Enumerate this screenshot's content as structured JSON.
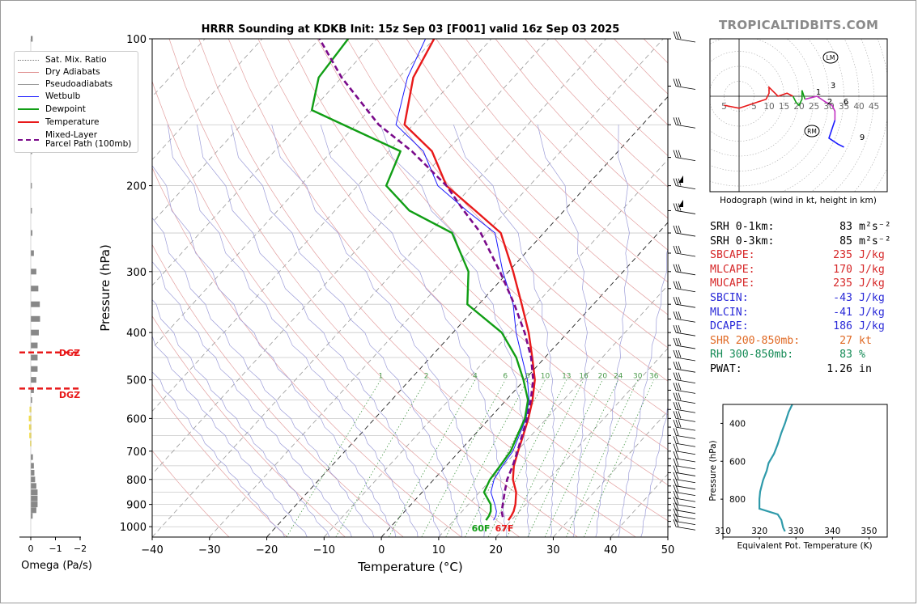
{
  "title": "HRRR Sounding at KDKB Init: 15z Sep 03 [F001] valid 16z Sep 03 2025",
  "watermark": "TROPICALTIDBITS.COM",
  "colors": {
    "temperature": "#e8191a",
    "dewpoint": "#119e15",
    "parcel": "#7a0a8a",
    "wetbulb": "#1a1aff",
    "dgz": "#e8191a",
    "theta_e": "#2e9aaa",
    "red_text": "#d62728",
    "blue_text": "#2a2ad8",
    "orange_text": "#e06a25",
    "green_text": "#138a55"
  },
  "legend": [
    {
      "label": "Sat. Mix. Ratio",
      "style": "dotted",
      "color": "#777777"
    },
    {
      "label": "Dry Adiabats",
      "style": "solid-thin",
      "color": "#e09090"
    },
    {
      "label": "Pseudoadiabats",
      "style": "solid-thin",
      "color": "#999999"
    },
    {
      "label": "Wetbulb",
      "style": "solid-thin",
      "color": "#1a1aff"
    },
    {
      "label": "Dewpoint",
      "style": "solid",
      "color": "#119e15"
    },
    {
      "label": "Temperature",
      "style": "solid",
      "color": "#e8191a"
    },
    {
      "label": "Mixed-Layer\nParcel Path (100mb)",
      "style": "dashed",
      "color": "#7a0a8a"
    }
  ],
  "chart_data": [
    {
      "type": "line",
      "title": "HRRR Sounding at KDKB Init: 15z Sep 03 [F001] valid 16z Sep 03 2025",
      "xlabel": "Temperature (°C)",
      "ylabel": "Pressure (hPa)",
      "xlim": [
        -40,
        50
      ],
      "ylim": [
        1050,
        100
      ],
      "y_scale": "log",
      "grid": true,
      "x_ticks": [
        "−40",
        "−30",
        "−20",
        "−10",
        "0",
        "10",
        "20",
        "30",
        "40",
        "50"
      ],
      "y_ticks": [
        "100",
        "200",
        "300",
        "400",
        "500",
        "600",
        "700",
        "800",
        "900",
        "1000"
      ],
      "mixing_ratio_labels": [
        "1",
        "2",
        "4",
        "6",
        "8",
        "10",
        "13",
        "16",
        "20",
        "24",
        "30",
        "36"
      ],
      "surface_labels": {
        "dewpoint": "60F",
        "temperature": "67F"
      },
      "series": [
        {
          "name": "Temperature",
          "points": [
            [
              19.5,
              970
            ],
            [
              19.3,
              950
            ],
            [
              19.0,
              930
            ],
            [
              18.2,
              900
            ],
            [
              16.4,
              850
            ],
            [
              13.8,
              800
            ],
            [
              11.8,
              750
            ],
            [
              10.2,
              700
            ],
            [
              8.6,
              650
            ],
            [
              6.8,
              600
            ],
            [
              4.6,
              550
            ],
            [
              1.8,
              500
            ],
            [
              -2.2,
              450
            ],
            [
              -6.8,
              400
            ],
            [
              -12.5,
              350
            ],
            [
              -19.2,
              300
            ],
            [
              -27.5,
              250
            ],
            [
              -35.5,
              225
            ],
            [
              -44.5,
              200
            ],
            [
              -52.5,
              170
            ],
            [
              -61.5,
              150
            ],
            [
              -67.5,
              120
            ],
            [
              -70.0,
              100
            ]
          ]
        },
        {
          "name": "Dewpoint",
          "points": [
            [
              15.6,
              970
            ],
            [
              15.4,
              950
            ],
            [
              15.0,
              930
            ],
            [
              13.9,
              900
            ],
            [
              10.8,
              850
            ],
            [
              9.8,
              800
            ],
            [
              9.4,
              750
            ],
            [
              8.9,
              700
            ],
            [
              7.6,
              650
            ],
            [
              6.2,
              600
            ],
            [
              3.8,
              550
            ],
            [
              -0.2,
              500
            ],
            [
              -5.0,
              450
            ],
            [
              -11.5,
              400
            ],
            [
              -22.0,
              350
            ],
            [
              -27.0,
              300
            ],
            [
              -36.0,
              250
            ],
            [
              -47.0,
              225
            ],
            [
              -55.0,
              200
            ],
            [
              -58.0,
              170
            ],
            [
              -80.0,
              140
            ],
            [
              -84.0,
              120
            ],
            [
              -85.0,
              100
            ]
          ]
        },
        {
          "name": "Wetbulb",
          "points": [
            [
              16.9,
              970
            ],
            [
              16.6,
              950
            ],
            [
              16.0,
              930
            ],
            [
              14.6,
              900
            ],
            [
              12.0,
              850
            ],
            [
              10.5,
              800
            ],
            [
              9.8,
              750
            ],
            [
              9.3,
              700
            ],
            [
              7.9,
              650
            ],
            [
              6.4,
              600
            ],
            [
              4.0,
              550
            ],
            [
              0.5,
              500
            ],
            [
              -4.0,
              450
            ],
            [
              -9.0,
              400
            ],
            [
              -14.0,
              350
            ],
            [
              -21.0,
              300
            ],
            [
              -28.5,
              250
            ],
            [
              -37.0,
              225
            ],
            [
              -46.0,
              200
            ],
            [
              -54.0,
              170
            ],
            [
              -63.0,
              150
            ],
            [
              -68.5,
              120
            ],
            [
              -71.5,
              100
            ]
          ]
        },
        {
          "name": "Mixed-Layer\nParcel Path (100mb)",
          "points": [
            [
              18.0,
              955
            ],
            [
              16.9,
              930
            ],
            [
              16.0,
              900
            ],
            [
              14.4,
              850
            ],
            [
              12.8,
              800
            ],
            [
              11.6,
              750
            ],
            [
              10.1,
              700
            ],
            [
              8.4,
              650
            ],
            [
              6.6,
              600
            ],
            [
              4.3,
              550
            ],
            [
              1.5,
              500
            ],
            [
              -2.4,
              450
            ],
            [
              -7.5,
              400
            ],
            [
              -13.8,
              350
            ],
            [
              -21.5,
              300
            ],
            [
              -31.0,
              250
            ],
            [
              -37.5,
              225
            ],
            [
              -44.5,
              200
            ],
            [
              -56.0,
              170
            ],
            [
              -66.0,
              150
            ],
            [
              -80.0,
              120
            ],
            [
              -90.0,
              100
            ]
          ]
        }
      ]
    },
    {
      "type": "bar",
      "xlabel": "Omega (Pa/s)",
      "x_ticks": [
        "0",
        "−1",
        "−2"
      ],
      "dgz_label": "DGZ",
      "dgz_top": 460,
      "dgz_bottom": 525,
      "note": "vertical velocity profile; negative values upward"
    },
    {
      "type": "line",
      "title": "Hodograph (wind in kt, height in km)",
      "ring_labels": [
        "5",
        "5",
        "10",
        "15",
        "20",
        "25",
        "30",
        "35",
        "40",
        "45"
      ],
      "height_labels": [
        "1",
        "2",
        "3",
        "6",
        "9"
      ],
      "markers": [
        "LM",
        "RM"
      ],
      "points": [
        [
          -5,
          -3
        ],
        [
          0,
          -4
        ],
        [
          3,
          -3
        ],
        [
          6,
          -2
        ],
        [
          9,
          -1
        ],
        [
          10,
          1
        ],
        [
          10,
          3
        ],
        [
          13,
          0
        ],
        [
          16,
          1
        ],
        [
          18,
          0
        ],
        [
          19,
          -2
        ],
        [
          20,
          -3
        ],
        [
          21,
          -1
        ],
        [
          21,
          2
        ],
        [
          22,
          -1
        ],
        [
          26,
          0
        ],
        [
          29,
          -2
        ],
        [
          31,
          -3
        ],
        [
          32,
          -5
        ],
        [
          32,
          -8
        ],
        [
          30,
          -14
        ],
        [
          33,
          -16
        ],
        [
          35,
          -17
        ]
      ]
    },
    {
      "type": "line",
      "xlabel": "Equivalent Pot. Temperature (K)",
      "ylabel": "Pressure (hPa)",
      "xlim": [
        310,
        355
      ],
      "ylim": [
        1000,
        300
      ],
      "x_ticks": [
        "310",
        "320",
        "330",
        "340",
        "350"
      ],
      "y_ticks": [
        "400",
        "600",
        "800"
      ],
      "points": [
        [
          327,
          970
        ],
        [
          326.5,
          950
        ],
        [
          326,
          910
        ],
        [
          325,
          880
        ],
        [
          320,
          850
        ],
        [
          320,
          800
        ],
        [
          320.2,
          760
        ],
        [
          321,
          700
        ],
        [
          322,
          650
        ],
        [
          322.5,
          610
        ],
        [
          324,
          560
        ],
        [
          325,
          510
        ],
        [
          326,
          450
        ],
        [
          327,
          400
        ],
        [
          328,
          340
        ],
        [
          329,
          300
        ]
      ]
    }
  ],
  "indices": [
    {
      "label": "SRH 0-1km:",
      "value": "83",
      "unit": "m²s⁻²",
      "color": "#000000"
    },
    {
      "label": "SRH 0-3km:",
      "value": "85",
      "unit": "m²s⁻²",
      "color": "#000000"
    },
    {
      "label": "SBCAPE:",
      "value": "235",
      "unit": "J/kg",
      "color": "#d62728"
    },
    {
      "label": "MLCAPE:",
      "value": "170",
      "unit": "J/kg",
      "color": "#d62728"
    },
    {
      "label": "MUCAPE:",
      "value": "235",
      "unit": "J/kg",
      "color": "#d62728"
    },
    {
      "label": "SBCIN:",
      "value": "-43",
      "unit": "J/kg",
      "color": "#2a2ad8"
    },
    {
      "label": "MLCIN:",
      "value": "-41",
      "unit": "J/kg",
      "color": "#2a2ad8"
    },
    {
      "label": "DCAPE:",
      "value": "186",
      "unit": "J/kg",
      "color": "#2a2ad8"
    },
    {
      "label": "SHR 200-850mb:",
      "value": "27",
      "unit": "kt",
      "color": "#e06a25"
    },
    {
      "label": "RH 300-850mb:",
      "value": "83",
      "unit": "%",
      "color": "#138a55"
    },
    {
      "label": "PWAT:",
      "value": "1.26",
      "unit": "in",
      "color": "#000000"
    }
  ]
}
